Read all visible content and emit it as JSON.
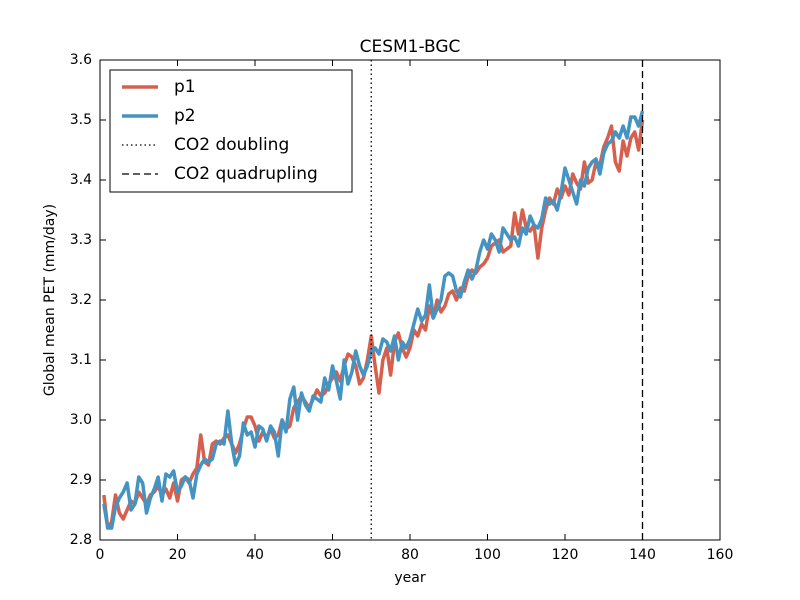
{
  "chart_data": {
    "type": "line",
    "title": "CESM1-BGC",
    "xlabel": "year",
    "ylabel": "Global mean PET (mm/day)",
    "xlim": [
      0,
      160
    ],
    "xticks": [
      0,
      20,
      40,
      60,
      80,
      100,
      120,
      140,
      160
    ],
    "ylim": [
      2.8,
      3.6
    ],
    "yticks": [
      2.8,
      2.9,
      {
        "value": 3,
        "label": "3.0"
      },
      3.1,
      3.2,
      3.3,
      3.4,
      3.5,
      3.6
    ],
    "legend": "upper left",
    "x": [
      1,
      2,
      3,
      4,
      5,
      6,
      7,
      8,
      9,
      10,
      11,
      12,
      13,
      14,
      15,
      16,
      17,
      18,
      19,
      20,
      21,
      22,
      23,
      24,
      25,
      26,
      27,
      28,
      29,
      30,
      31,
      32,
      33,
      34,
      35,
      36,
      37,
      38,
      39,
      40,
      41,
      42,
      43,
      44,
      45,
      46,
      47,
      48,
      49,
      50,
      51,
      52,
      53,
      54,
      55,
      56,
      57,
      58,
      59,
      60,
      61,
      62,
      63,
      64,
      65,
      66,
      67,
      68,
      69,
      70,
      71,
      72,
      73,
      74,
      75,
      76,
      77,
      78,
      79,
      80,
      81,
      82,
      83,
      84,
      85,
      86,
      87,
      88,
      89,
      90,
      91,
      92,
      93,
      94,
      95,
      96,
      97,
      98,
      99,
      100,
      101,
      102,
      103,
      104,
      105,
      106,
      107,
      108,
      109,
      110,
      111,
      112,
      113,
      114,
      115,
      116,
      117,
      118,
      119,
      120,
      121,
      122,
      123,
      124,
      125,
      126,
      127,
      128,
      129,
      130,
      131,
      132,
      133,
      134,
      135,
      136,
      137,
      138,
      139,
      140
    ],
    "series": [
      {
        "name": "p1",
        "color": "#d6604d",
        "values": [
          2.875,
          2.82,
          2.83,
          2.875,
          2.845,
          2.835,
          2.85,
          2.865,
          2.86,
          2.88,
          2.87,
          2.86,
          2.875,
          2.88,
          2.89,
          2.875,
          2.885,
          2.87,
          2.895,
          2.865,
          2.9,
          2.905,
          2.895,
          2.91,
          2.92,
          2.975,
          2.93,
          2.925,
          2.96,
          2.965,
          2.96,
          2.97,
          2.975,
          2.96,
          2.945,
          2.96,
          2.985,
          3.005,
          3.005,
          2.99,
          2.965,
          2.98,
          2.97,
          2.985,
          2.97,
          2.975,
          3.0,
          2.985,
          2.99,
          3.02,
          3.03,
          3.04,
          3.03,
          3.02,
          3.035,
          3.05,
          3.04,
          3.045,
          3.06,
          3.07,
          3.08,
          3.065,
          3.09,
          3.11,
          3.105,
          3.09,
          3.06,
          3.07,
          3.1,
          3.14,
          3.09,
          3.045,
          3.1,
          3.12,
          3.075,
          3.13,
          3.145,
          3.12,
          3.105,
          3.12,
          3.15,
          3.14,
          3.16,
          3.15,
          3.19,
          3.17,
          3.2,
          3.18,
          3.19,
          3.21,
          3.215,
          3.2,
          3.22,
          3.215,
          3.24,
          3.25,
          3.245,
          3.255,
          3.26,
          3.27,
          3.29,
          3.295,
          3.3,
          3.28,
          3.285,
          3.29,
          3.345,
          3.31,
          3.35,
          3.32,
          3.315,
          3.325,
          3.27,
          3.32,
          3.35,
          3.37,
          3.36,
          3.385,
          3.37,
          3.39,
          3.375,
          3.41,
          3.395,
          3.385,
          3.43,
          3.395,
          3.4,
          3.43,
          3.425,
          3.455,
          3.47,
          3.49,
          3.43,
          3.415,
          3.465,
          3.44,
          3.47,
          3.48,
          3.45,
          3.5
        ]
      },
      {
        "name": "p2",
        "color": "#4393c3",
        "values": [
          2.86,
          2.82,
          2.82,
          2.855,
          2.87,
          2.88,
          2.895,
          2.85,
          2.86,
          2.905,
          2.895,
          2.845,
          2.87,
          2.885,
          2.905,
          2.865,
          2.91,
          2.905,
          2.915,
          2.88,
          2.89,
          2.905,
          2.9,
          2.87,
          2.91,
          2.925,
          2.935,
          2.93,
          2.935,
          2.96,
          2.965,
          2.96,
          3.015,
          2.96,
          2.925,
          2.94,
          2.995,
          2.975,
          2.98,
          2.955,
          2.99,
          2.985,
          2.965,
          2.99,
          2.98,
          2.94,
          3.0,
          2.98,
          3.035,
          3.055,
          3.0,
          3.045,
          3.025,
          3.015,
          3.04,
          3.035,
          3.03,
          3.07,
          3.05,
          3.09,
          3.065,
          3.035,
          3.1,
          3.06,
          3.08,
          3.115,
          3.09,
          3.075,
          3.09,
          3.115,
          3.12,
          3.11,
          3.135,
          3.13,
          3.115,
          3.14,
          3.1,
          3.13,
          3.12,
          3.135,
          3.16,
          3.185,
          3.165,
          3.175,
          3.225,
          3.17,
          3.185,
          3.2,
          3.24,
          3.245,
          3.24,
          3.215,
          3.205,
          3.23,
          3.25,
          3.235,
          3.25,
          3.28,
          3.3,
          3.285,
          3.31,
          3.3,
          3.28,
          3.32,
          3.31,
          3.3,
          3.305,
          3.29,
          3.32,
          3.31,
          3.34,
          3.325,
          3.32,
          3.335,
          3.37,
          3.36,
          3.365,
          3.35,
          3.38,
          3.42,
          3.4,
          3.38,
          3.36,
          3.4,
          3.39,
          3.42,
          3.43,
          3.435,
          3.41,
          3.445,
          3.46,
          3.465,
          3.48,
          3.47,
          3.49,
          3.47,
          3.505,
          3.505,
          3.49,
          3.515
        ]
      }
    ],
    "vlines": [
      {
        "name": "CO2 doubling",
        "x": 70,
        "style": "dotted",
        "color": "#000000"
      },
      {
        "name": "CO2 quadrupling",
        "x": 140,
        "style": "dashed",
        "color": "#000000"
      }
    ]
  }
}
